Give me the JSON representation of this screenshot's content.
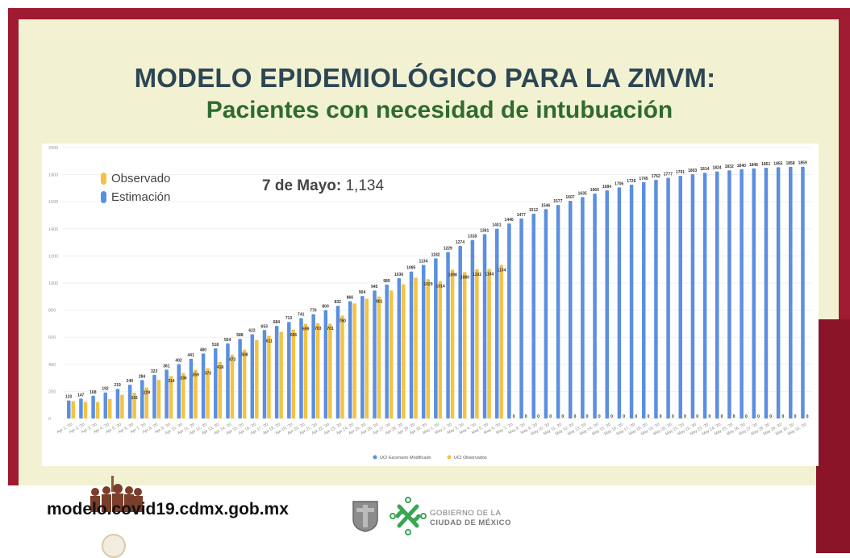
{
  "title": "MODELO EPIDEMIOLÓGICO PARA LA ZMVM:",
  "subtitle": "Pacientes con necesidad de intubuación",
  "annotation": {
    "date": "7 de Mayo:",
    "value": "1,134"
  },
  "legend_overlay": [
    {
      "label": "Observado",
      "color": "#f5c242"
    },
    {
      "label": "Estimación",
      "color": "#5b8fe0"
    }
  ],
  "footer": {
    "url": "modelo.covid19.cdmx.gob.mx",
    "gov_line1": "GOBIERNO DE LA",
    "gov_line2": "CIUDAD DE MÉXICO"
  },
  "colors": {
    "frame": "#9e1b32",
    "panel": "#f2f2d2",
    "estimation": "#5b8fe0",
    "observed": "#f5c242",
    "title": "#2c4654",
    "subtitle": "#2f6b2f"
  },
  "chart_data": {
    "type": "bar",
    "ylim": [
      0,
      2000
    ],
    "yticks": [
      0,
      200,
      400,
      600,
      800,
      1000,
      1200,
      1400,
      1600,
      1800,
      2000
    ],
    "grid": true,
    "legend": "bottom",
    "legend_labels": [
      "UCI Escenario Modificado",
      "UCI Observados"
    ],
    "categories": [
      "Apr 1, '20",
      "Apr 2, '20",
      "Apr 3, '20",
      "Apr 4, '20",
      "Apr 5, '20",
      "Apr 6, '20",
      "Apr 7, '20",
      "Apr 8, '20",
      "Apr 9, '20",
      "Apr 10, '20",
      "Apr 11, '20",
      "Apr 12, '20",
      "Apr 13, '20",
      "Apr 14, '20",
      "Apr 15, '20",
      "Apr 16, '20",
      "Apr 17, '20",
      "Apr 18, '20",
      "Apr 19, '20",
      "Apr 20, '20",
      "Apr 21, '20",
      "Apr 22, '20",
      "Apr 23, '20",
      "Apr 24, '20",
      "Apr 25, '20",
      "Apr 26, '20",
      "Apr 27, '20",
      "Apr 28, '20",
      "Apr 29, '20",
      "Apr 30, '20",
      "May 1, '20",
      "May 2, '20",
      "May 3, '20",
      "May 4, '20",
      "May 5, '20",
      "May 6, '20",
      "May 7, '20",
      "May 8, '20",
      "May 9, '20",
      "May 10, '20",
      "May 11, '20",
      "May 12, '20",
      "May 13, '20",
      "May 14, '20",
      "May 15, '20",
      "May 16, '20",
      "May 17, '20",
      "May 18, '20",
      "May 19, '20",
      "May 20, '20",
      "May 21, '20",
      "May 22, '20",
      "May 23, '20",
      "May 24, '20",
      "May 25, '20",
      "May 26, '20",
      "May 27, '20",
      "May 28, '20",
      "May 29, '20",
      "May 30, '20",
      "May 31, '20"
    ],
    "series": [
      {
        "name": "UCI Escenario Modificado",
        "color": "#5b8fe0",
        "values": [
          133,
          147,
          168,
          192,
          219,
          249,
          284,
          322,
          361,
          402,
          441,
          480,
          518,
          554,
          588,
          622,
          653,
          684,
          713,
          741,
          770,
          800,
          832,
          866,
          904,
          945,
          989,
          1036,
          1085,
          1134,
          1182,
          1229,
          1274,
          1318,
          1361,
          1401,
          1440,
          1477,
          1512,
          1546,
          1577,
          1607,
          1635,
          1660,
          1684,
          1706,
          1726,
          1745,
          1762,
          1777,
          1791,
          1803,
          1814,
          1824,
          1832,
          1840,
          1846,
          1851,
          1855,
          1858,
          1859
        ],
        "labeled": true
      },
      {
        "name": "UCI Observados",
        "color": "#f5c242",
        "values": [
          128,
          122,
          122,
          145,
          175,
          191,
          229,
          285,
          314,
          336,
          359,
          373,
          418,
          472,
          508,
          580,
          611,
          640,
          656,
          699,
          703,
          701,
          760,
          850,
          885,
          901,
          945,
          990,
          1040,
          1029,
          1014,
          1098,
          1080,
          1102,
          1104,
          1134,
          0,
          0,
          0,
          0,
          0,
          0,
          0,
          0,
          0,
          0,
          0,
          0,
          0,
          0,
          0,
          0,
          0,
          0,
          0,
          0,
          0,
          0,
          0,
          0,
          0
        ],
        "labels": {
          "5": "191",
          "6": "229",
          "8": "314",
          "9": "336",
          "10": "359",
          "11": "373",
          "12": "418",
          "13": "472",
          "14": "508",
          "16": "611",
          "18": "656",
          "19": "699",
          "20": "703",
          "21": "701",
          "22": "760",
          "25": "901",
          "29": "1029",
          "30": "1014",
          "31": "1098",
          "32": "1080",
          "33": "1102",
          "34": "1104",
          "35": "1134"
        }
      }
    ]
  }
}
